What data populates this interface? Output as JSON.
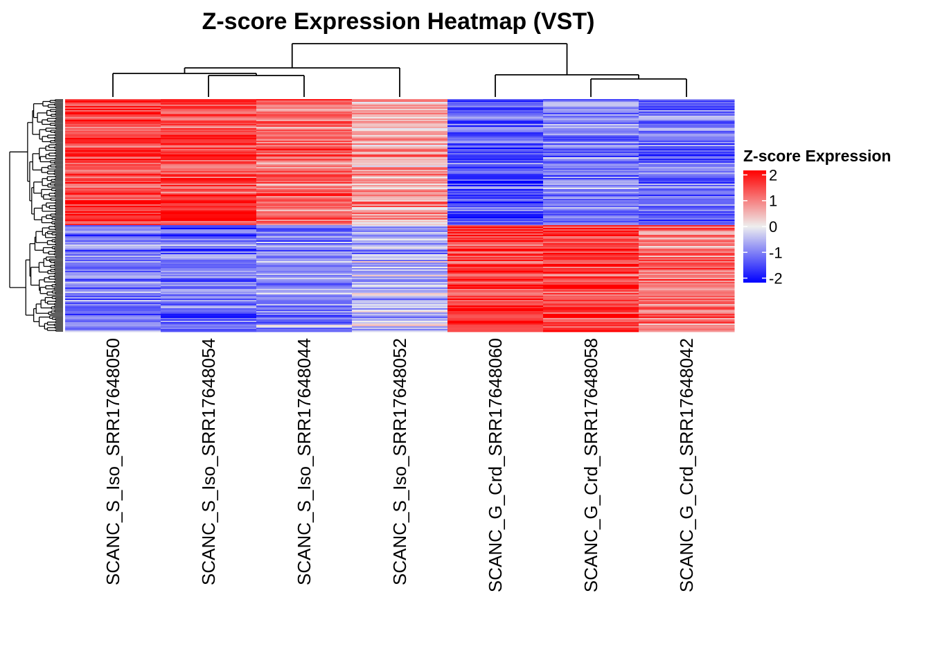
{
  "chart_data": {
    "type": "heatmap",
    "title": "Z-score Expression Heatmap (VST)",
    "columns": [
      "SCANC_S_Iso_SRR17648050",
      "SCANC_S_Iso_SRR17648054",
      "SCANC_S_Iso_SRR17648044",
      "SCANC_S_Iso_SRR17648052",
      "SCANC_G_Crd_SRR17648060",
      "SCANC_G_Crd_SRR17648058",
      "SCANC_G_Crd_SRR17648042"
    ],
    "row_blocks": [
      {
        "name": "upper cluster",
        "fraction": 0.54,
        "column_means": [
          1.5,
          1.4,
          1.1,
          0.6,
          -1.3,
          -0.9,
          -1.1
        ]
      },
      {
        "name": "lower cluster",
        "fraction": 0.46,
        "column_means": [
          -0.9,
          -1.0,
          -0.8,
          -0.5,
          1.5,
          1.5,
          1.0
        ]
      }
    ],
    "column_dendrogram": "((((SCANC_S_Iso_SRR17648050,(SCANC_S_Iso_SRR17648054,SCANC_S_Iso_SRR17648044)),SCANC_S_Iso_SRR17648052)),(SCANC_G_Crd_SRR17648060,(SCANC_G_Crd_SRR17648058,SCANC_G_Crd_SRR17648042)))",
    "row_dendrogram": true,
    "legend": {
      "title": "Z-score Expression",
      "ticks": [
        "2",
        "1",
        "0",
        "-1",
        "-2"
      ],
      "range": [
        -2,
        2
      ],
      "colors": {
        "low": "#0000FF",
        "mid": "#EEEEEE",
        "high": "#FF0000"
      },
      "placement": "right"
    }
  }
}
